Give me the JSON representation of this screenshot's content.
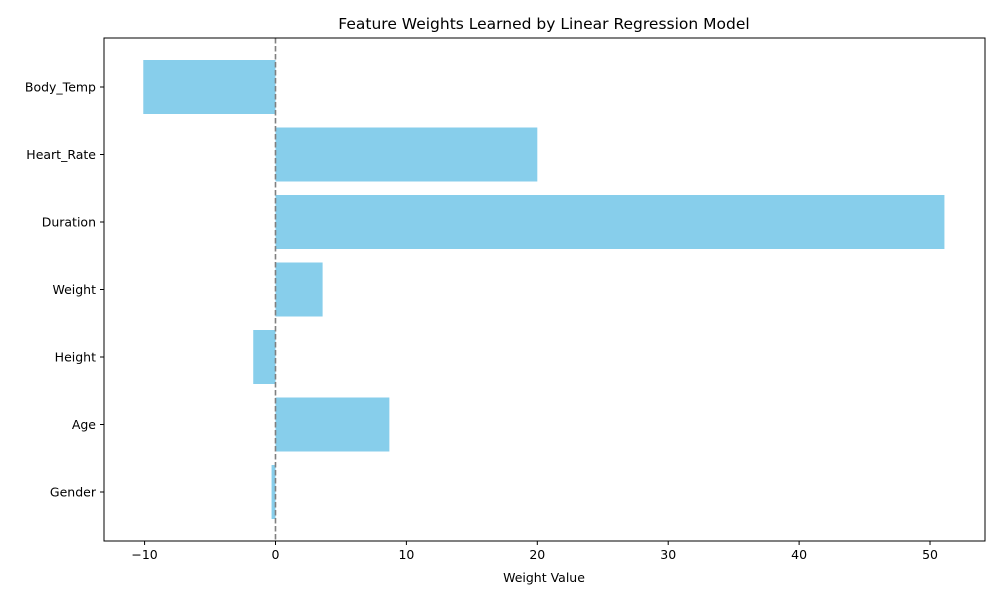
{
  "chart_data": {
    "type": "bar",
    "orientation": "horizontal",
    "title": "Feature Weights Learned by Linear Regression Model",
    "xlabel": "Weight Value",
    "ylabel": "",
    "categories": [
      "Gender",
      "Age",
      "Height",
      "Weight",
      "Duration",
      "Heart_Rate",
      "Body_Temp"
    ],
    "values": [
      -0.3,
      8.7,
      -1.7,
      3.6,
      51.1,
      20.0,
      -10.1
    ],
    "xlim": [
      -13.1,
      54.2
    ],
    "xticks": [
      -10,
      0,
      10,
      20,
      30,
      40,
      50
    ],
    "xtick_labels": [
      "−10",
      "0",
      "10",
      "20",
      "30",
      "40",
      "50"
    ],
    "reference_line": {
      "x": 0,
      "style": "dashed",
      "color": "#808080"
    },
    "bar_color": "#87CEEB",
    "grid": false,
    "legend": "none"
  }
}
